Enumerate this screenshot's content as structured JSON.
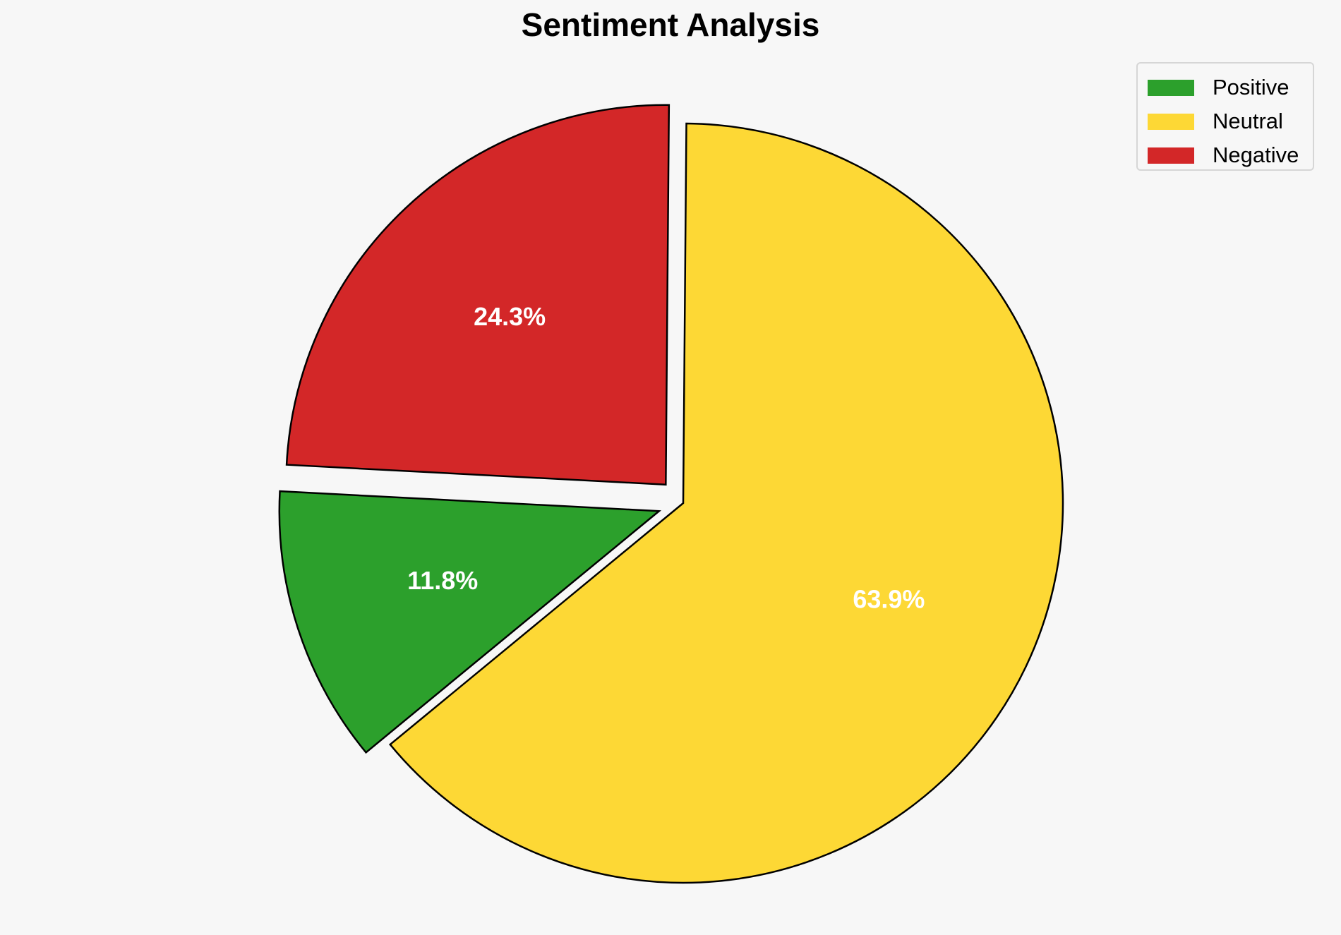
{
  "chart_data": {
    "type": "pie",
    "title": "Sentiment Analysis",
    "categories": [
      "Positive",
      "Neutral",
      "Negative"
    ],
    "values": [
      11.8,
      63.9,
      24.3
    ],
    "labels": [
      "11.8%",
      "63.9%",
      "24.3%"
    ],
    "colors": [
      "#2ca02c",
      "#fdd835",
      "#d32728"
    ],
    "exploded": [
      "Positive",
      "Negative"
    ],
    "legend_position": "top-right"
  }
}
